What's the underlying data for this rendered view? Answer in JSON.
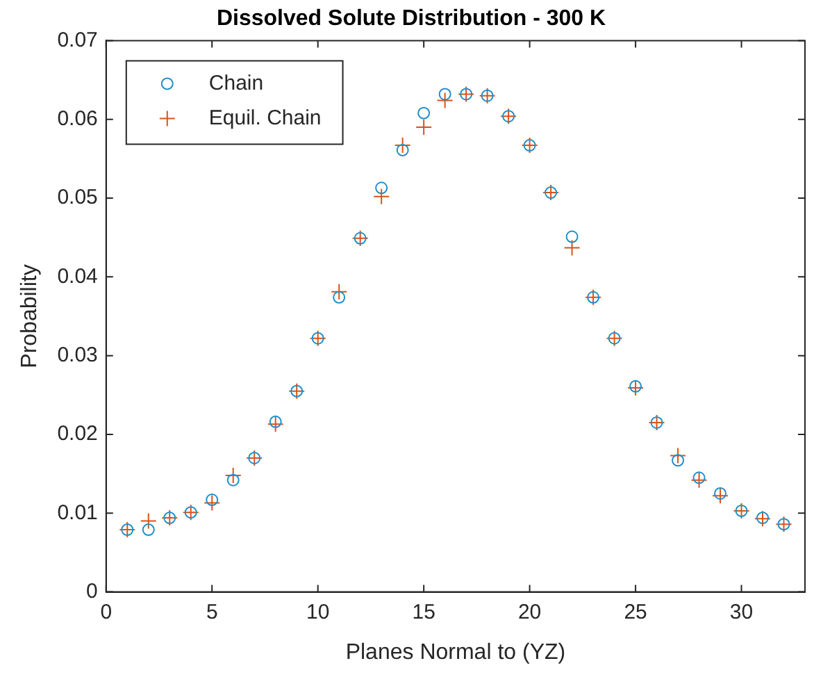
{
  "chart_data": {
    "type": "scatter",
    "title": "Dissolved Solute Distribution - 300 K",
    "xlabel": "Planes Normal to (YZ)",
    "ylabel": "Probability",
    "x": [
      1,
      2,
      3,
      4,
      5,
      6,
      7,
      8,
      9,
      10,
      11,
      12,
      13,
      14,
      15,
      16,
      17,
      18,
      19,
      20,
      21,
      22,
      23,
      24,
      25,
      26,
      27,
      28,
      29,
      30,
      31,
      32
    ],
    "series": [
      {
        "name": "Chain",
        "color": "#1f8fc8",
        "marker": "circle",
        "values": [
          0.0079,
          0.0079,
          0.0094,
          0.0101,
          0.0117,
          0.0142,
          0.017,
          0.0216,
          0.0255,
          0.0322,
          0.0374,
          0.0449,
          0.0513,
          0.0561,
          0.0608,
          0.0632,
          0.0632,
          0.063,
          0.0604,
          0.0567,
          0.0507,
          0.0451,
          0.0374,
          0.0322,
          0.0261,
          0.0215,
          0.0167,
          0.0145,
          0.0125,
          0.0103,
          0.0094,
          0.0086
        ]
      },
      {
        "name": "Equil. Chain",
        "color": "#d95319",
        "marker": "cross",
        "values": [
          0.0079,
          0.009,
          0.0094,
          0.0101,
          0.0113,
          0.0148,
          0.017,
          0.0213,
          0.0255,
          0.0322,
          0.0381,
          0.0449,
          0.0502,
          0.0567,
          0.059,
          0.0624,
          0.0632,
          0.063,
          0.0604,
          0.0567,
          0.0507,
          0.0437,
          0.0374,
          0.0322,
          0.0259,
          0.0215,
          0.0173,
          0.0142,
          0.0122,
          0.0103,
          0.0093,
          0.0086
        ]
      }
    ],
    "xlim": [
      0,
      33
    ],
    "xticks": [
      0,
      5,
      10,
      15,
      20,
      25,
      30
    ],
    "ylim": [
      0,
      0.07
    ],
    "yticks": [
      0,
      0.01,
      0.02,
      0.03,
      0.04,
      0.05,
      0.06,
      0.07
    ],
    "grid": false,
    "legend": "top left"
  }
}
